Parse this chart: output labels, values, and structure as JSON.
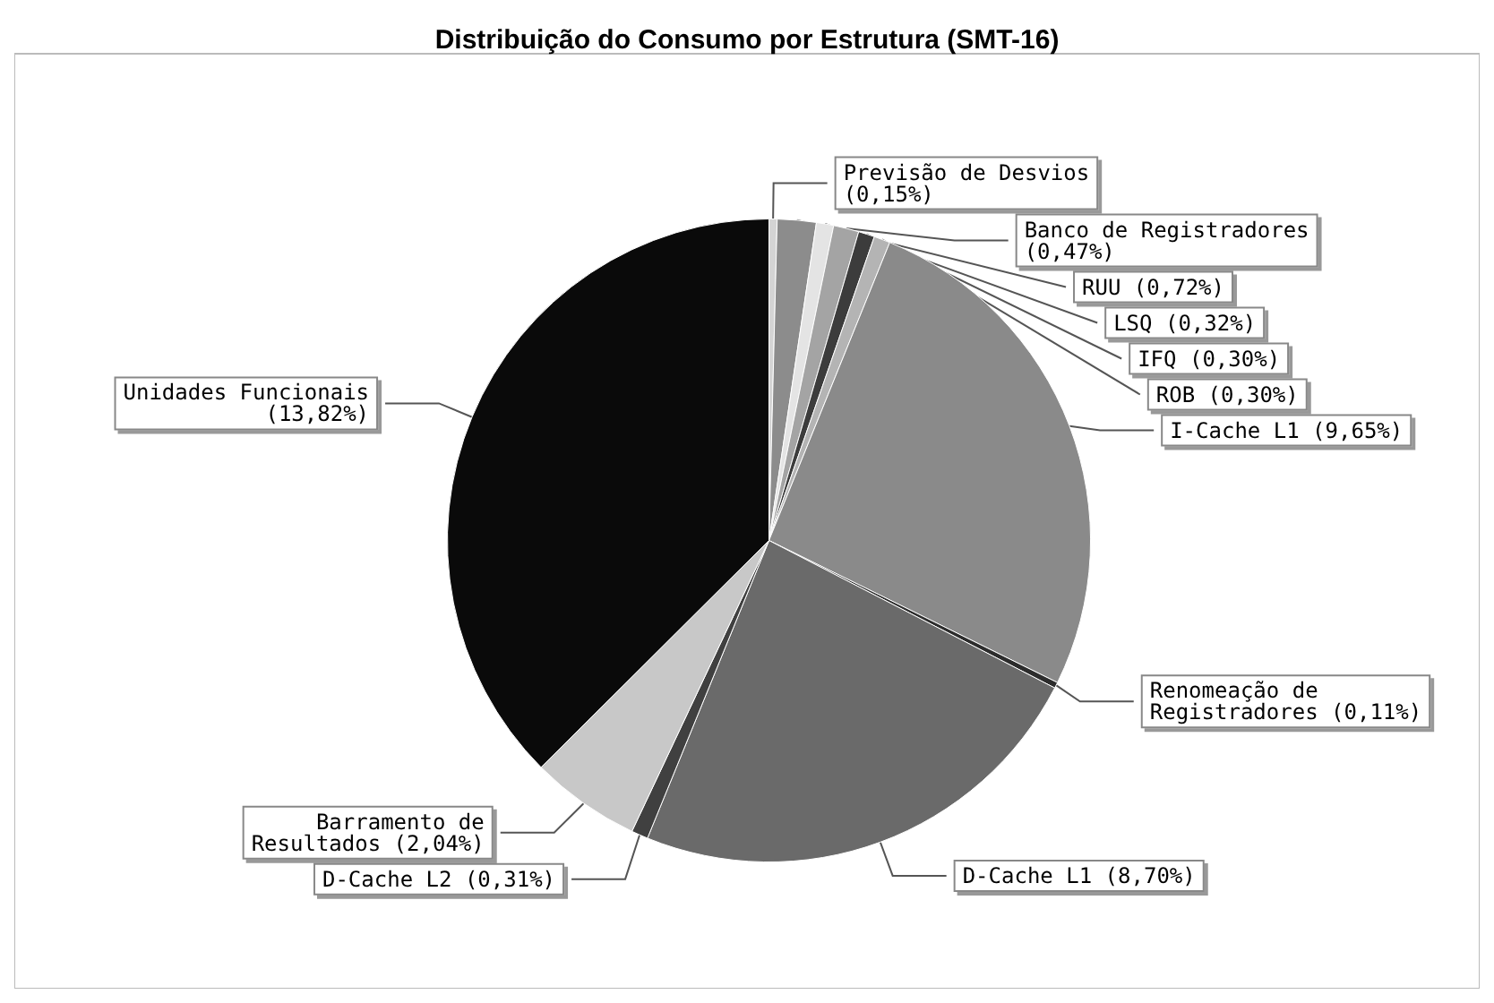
{
  "chart_data": {
    "type": "pie",
    "title": "Distribuição do Consumo por Estrutura (SMT-16)",
    "categories": [
      "Previsão de Desvios",
      "RUU",
      "LSQ",
      "Banco de Registradores",
      "IFQ",
      "ROB",
      "I-Cache L1",
      "Renomeação de Registradores",
      "D-Cache L1",
      "D-Cache L2",
      "Barramento de Resultados",
      "Unidades Funcionais"
    ],
    "values": [
      0.15,
      0.72,
      0.32,
      0.47,
      0.3,
      0.3,
      9.65,
      0.11,
      8.7,
      0.31,
      2.04,
      13.82
    ],
    "value_labels": [
      "(0,15%)",
      "(0,72%)",
      "(0,32%)",
      "(0,47%)",
      "(0,30%)",
      "(0,30%)",
      "(9,65%)",
      "(0,11%)",
      "(8,70%)",
      "(0,31%)",
      "(2,04%)",
      "(13,82%)"
    ],
    "colors": [
      "#d4d4d4",
      "#8c8c8c",
      "#e4e4e4",
      "#a4a4a4",
      "#3c3c3c",
      "#b4b4b4",
      "#8a8a8a",
      "#2c2c2c",
      "#6a6a6a",
      "#404040",
      "#c8c8c8",
      "#0a0a0a"
    ],
    "legend": false
  }
}
